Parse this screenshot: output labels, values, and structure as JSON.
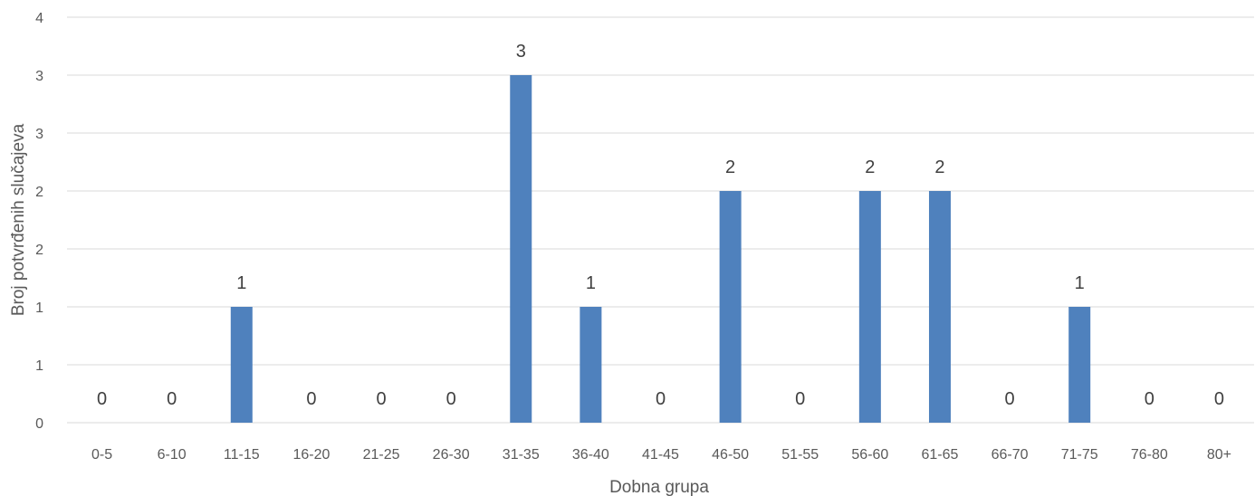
{
  "chart_data": {
    "type": "bar",
    "title": "",
    "xlabel": "Dobna grupa",
    "ylabel": "Broj potvrđenih slučajeva",
    "categories": [
      "0-5",
      "6-10",
      "11-15",
      "16-20",
      "21-25",
      "26-30",
      "31-35",
      "36-40",
      "41-45",
      "46-50",
      "51-55",
      "56-60",
      "61-65",
      "66-70",
      "71-75",
      "76-80",
      "80+"
    ],
    "values": [
      0,
      0,
      1,
      0,
      0,
      0,
      3,
      1,
      0,
      2,
      0,
      2,
      2,
      0,
      1,
      0,
      0
    ],
    "data_labels": [
      "0",
      "0",
      "1",
      "0",
      "0",
      "0",
      "3",
      "1",
      "0",
      "2",
      "0",
      "2",
      "2",
      "0",
      "1",
      "0",
      "0"
    ],
    "ylim": [
      0,
      3
    ],
    "y_ticks": [
      0,
      0.5,
      1,
      1.5,
      2,
      2.5,
      3
    ],
    "y_tick_labels": [
      "0",
      "1",
      "1",
      "2",
      "2",
      "3",
      "3"
    ],
    "grid": true,
    "legend": "none",
    "colors": {
      "bar": "#4f81bd"
    }
  }
}
